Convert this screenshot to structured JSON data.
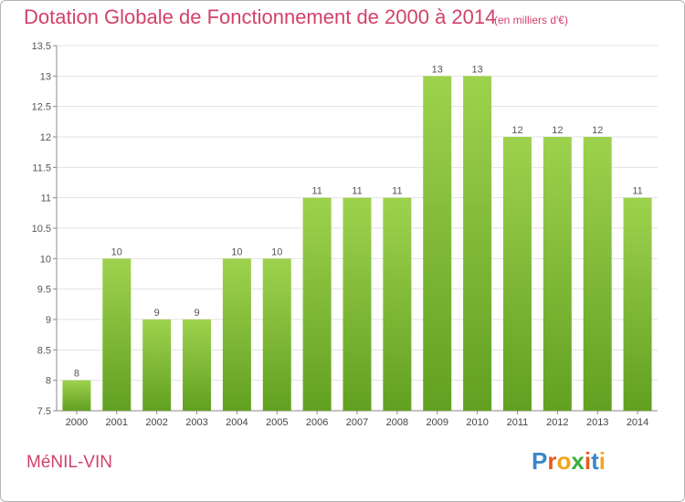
{
  "header": {
    "title": "Dotation Globale de Fonctionnement de 2000 à 2014",
    "unit": "(en milliers d'€)"
  },
  "footer": {
    "commune": "MéNIL-VIN",
    "logo": "Proxiti"
  },
  "colors": {
    "accent": "#d2416b",
    "bar_light": "#9ed24e",
    "bar_dark": "#62a021",
    "logo_letters": [
      "#3a86c8",
      "#e8591e",
      "#f2a51b",
      "#3cae3c",
      "#e8591e",
      "#3a86c8",
      "#f2a51b"
    ]
  },
  "chart_data": {
    "type": "bar",
    "categories": [
      "2000",
      "2001",
      "2002",
      "2003",
      "2004",
      "2005",
      "2006",
      "2007",
      "2008",
      "2009",
      "2010",
      "2011",
      "2012",
      "2013",
      "2014"
    ],
    "values": [
      8,
      10,
      9,
      9,
      10,
      10,
      11,
      11,
      11,
      13,
      13,
      12,
      12,
      12,
      11
    ],
    "labels": [
      "8",
      "10",
      "9",
      "9",
      "10",
      "10",
      "11",
      "11",
      "11",
      "13",
      "13",
      "12",
      "12",
      "12",
      "11"
    ],
    "ylim": [
      7.5,
      13.5
    ],
    "yticks": [
      7.5,
      8,
      8.5,
      9,
      9.5,
      10,
      10.5,
      11,
      11.5,
      12,
      12.5,
      13,
      13.5
    ],
    "ytick_labels": [
      "7.5",
      "8",
      "8.5",
      "9",
      "9.5",
      "10",
      "10.5",
      "11",
      "11.5",
      "12",
      "12.5",
      "13",
      "13.5"
    ],
    "grid": true,
    "xlabel": "",
    "ylabel": ""
  }
}
